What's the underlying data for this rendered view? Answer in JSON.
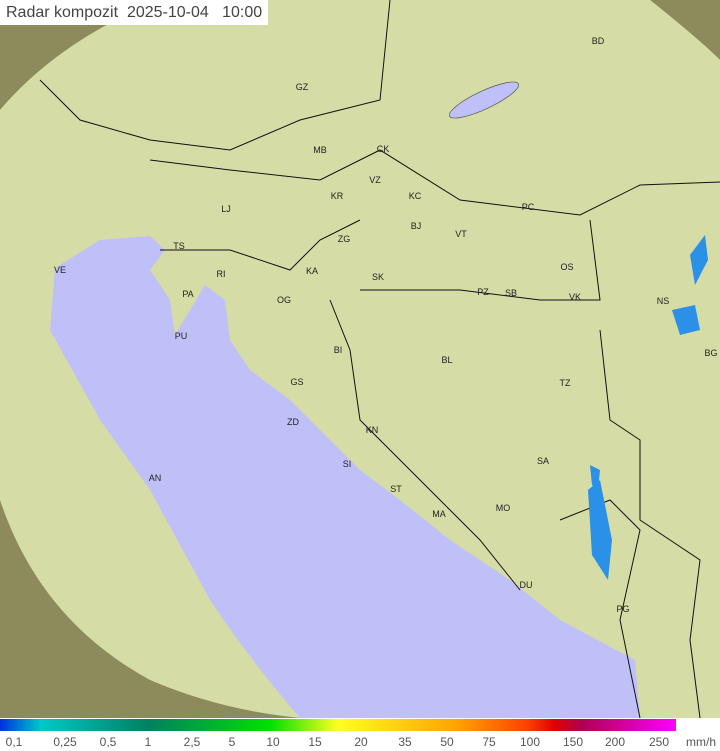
{
  "title": "Radar kompozit  2025-10-04   10:00",
  "legend": {
    "unit": "mm/h",
    "ticks": [
      "0,1",
      "0,25",
      "0,5",
      "1",
      "2,5",
      "5",
      "10",
      "15",
      "20",
      "35",
      "50",
      "75",
      "100",
      "150",
      "200",
      "250"
    ]
  },
  "colors": {
    "sea": "#c0c0f8",
    "land": "#d9d9a8",
    "outside": "#8d8a5c",
    "radar_echo": "#2a90e8"
  },
  "cities": [
    "GZ",
    "BD",
    "MB",
    "CK",
    "VZ",
    "KR",
    "KC",
    "LJ",
    "PC",
    "ZG",
    "BJ",
    "VT",
    "TS",
    "VE",
    "RI",
    "KA",
    "SK",
    "OS",
    "PA",
    "OG",
    "PZ",
    "SB",
    "VK",
    "NS",
    "PU",
    "BI",
    "BL",
    "BG",
    "GS",
    "TZ",
    "ZD",
    "KN",
    "SA",
    "SI",
    "AN",
    "ST",
    "MO",
    "MA",
    "DU",
    "PG"
  ]
}
